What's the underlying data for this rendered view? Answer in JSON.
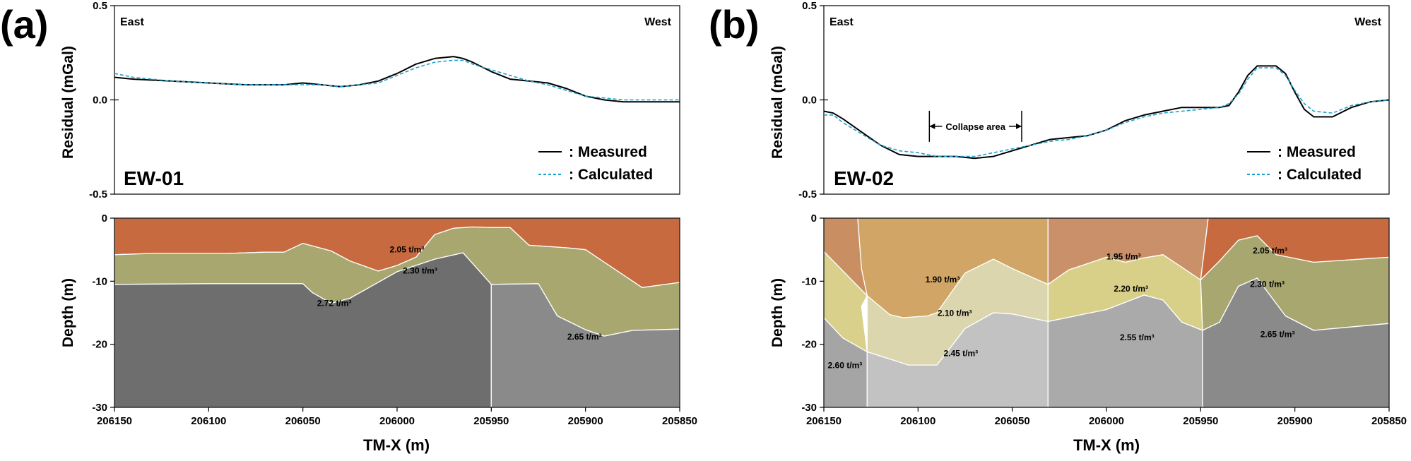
{
  "colors": {
    "measured": "#000000",
    "calculated": "#1aa3cf",
    "profile_label": "#e0302a",
    "boundary": "#ffffff"
  },
  "panels": [
    {
      "letter": "(a)",
      "left_label": "East",
      "right_label": "West",
      "profile": "EW-01",
      "annotation": "",
      "legend": {
        "measured": ": Measured",
        "calculated": ": Calculated"
      }
    },
    {
      "letter": "(b)",
      "left_label": "East",
      "right_label": "West",
      "profile": "EW-02",
      "annotation": "Collapse area",
      "legend": {
        "measured": ": Measured",
        "calculated": ": Calculated"
      }
    }
  ],
  "axes": {
    "top_ylabel": "Residual (mGal)",
    "bottom_ylabel": "Depth (m)",
    "xlabel": "TM-X (m)",
    "x_ticks": [
      206150,
      206100,
      206050,
      206000,
      205950,
      205900,
      205850
    ],
    "x_tick_labels": [
      "206150",
      "206100",
      "206050",
      "206000",
      "205950",
      "205900",
      "205850"
    ],
    "top_y_ticks": [
      0.5,
      0.0,
      -0.5
    ],
    "top_y_tick_labels": [
      "0.5",
      "0.0",
      "-0.5"
    ],
    "bottom_y_ticks": [
      0,
      -10,
      -20,
      -30
    ],
    "bottom_y_tick_labels": [
      "0",
      "-10",
      "-20",
      "-30"
    ]
  },
  "chart_data": [
    {
      "type": "line",
      "panel": "a",
      "title": "EW-01",
      "xlabel": "TM-X (m)",
      "ylabel": "Residual (mGal)",
      "xlim": [
        206150,
        205850
      ],
      "ylim": [
        -0.5,
        0.5
      ],
      "series": [
        {
          "name": "Measured",
          "x": [
            206150,
            206140,
            206120,
            206100,
            206080,
            206060,
            206050,
            206040,
            206030,
            206020,
            206010,
            206000,
            205990,
            205980,
            205970,
            205965,
            205960,
            205950,
            205940,
            205930,
            205920,
            205910,
            205900,
            205890,
            205880,
            205870,
            205860,
            205850
          ],
          "y": [
            0.12,
            0.11,
            0.1,
            0.09,
            0.08,
            0.08,
            0.09,
            0.08,
            0.07,
            0.08,
            0.1,
            0.14,
            0.19,
            0.22,
            0.23,
            0.22,
            0.2,
            0.15,
            0.11,
            0.1,
            0.09,
            0.06,
            0.02,
            0.0,
            -0.01,
            -0.01,
            -0.01,
            -0.01
          ]
        },
        {
          "name": "Calculated",
          "x": [
            206150,
            206140,
            206120,
            206100,
            206080,
            206060,
            206050,
            206040,
            206030,
            206020,
            206010,
            206000,
            205990,
            205980,
            205970,
            205965,
            205960,
            205950,
            205940,
            205930,
            205920,
            205910,
            205900,
            205890,
            205880,
            205870,
            205860,
            205850
          ],
          "y": [
            0.14,
            0.12,
            0.1,
            0.09,
            0.08,
            0.08,
            0.08,
            0.08,
            0.07,
            0.08,
            0.09,
            0.13,
            0.17,
            0.2,
            0.21,
            0.21,
            0.19,
            0.16,
            0.13,
            0.1,
            0.08,
            0.05,
            0.02,
            0.01,
            0.0,
            0.0,
            0.0,
            0.0
          ]
        }
      ]
    },
    {
      "type": "area",
      "panel": "a",
      "xlabel": "TM-X (m)",
      "ylabel": "Depth (m)",
      "xlim": [
        206150,
        205850
      ],
      "ylim": [
        -30,
        0
      ],
      "layers": [
        {
          "label": "2.05 t/m³",
          "color": "#c76a40",
          "top": {
            "x": [
              206150,
              205850
            ],
            "depth": [
              0,
              0
            ]
          },
          "bottom": {
            "x": [
              206150,
              206130,
              206110,
              206090,
              206070,
              206060,
              206050,
              206035,
              206025,
              206010,
              206000,
              205990,
              205980,
              205970,
              205960,
              205950,
              205940,
              205930,
              205910,
              205900,
              205890,
              205870,
              205850
            ],
            "depth": [
              -5.8,
              -5.6,
              -5.6,
              -5.6,
              -5.4,
              -5.4,
              -4.0,
              -5.2,
              -6.8,
              -8.4,
              -7.5,
              -6.2,
              -2.6,
              -1.6,
              -1.4,
              -1.5,
              -1.5,
              -4.3,
              -4.7,
              -5.0,
              -7.0,
              -11.0,
              -10.2
            ]
          }
        },
        {
          "label": "2.30 t/m³",
          "color": "#a8a76f",
          "top": {
            "x": [
              206150,
              206130,
              206110,
              206090,
              206070,
              206060,
              206050,
              206035,
              206025,
              206010,
              206000,
              205990,
              205980,
              205970,
              205960,
              205950,
              205940,
              205930,
              205910,
              205900,
              205890,
              205870,
              205850
            ],
            "depth": [
              -5.8,
              -5.6,
              -5.6,
              -5.6,
              -5.4,
              -5.4,
              -4.0,
              -5.2,
              -6.8,
              -8.4,
              -7.5,
              -6.2,
              -2.6,
              -1.6,
              -1.4,
              -1.5,
              -1.5,
              -4.3,
              -4.7,
              -5.0,
              -7.0,
              -11.0,
              -10.2
            ]
          },
          "bottom": {
            "x": [
              206150,
              206100,
              206050,
              206045,
              206035,
              206025,
              206000,
              205980,
              205965,
              205950,
              205925,
              205915,
              205900,
              205890,
              205875,
              205850
            ],
            "depth": [
              -10.5,
              -10.4,
              -10.4,
              -11.8,
              -13.5,
              -12.7,
              -8.5,
              -6.5,
              -5.5,
              -10.5,
              -10.4,
              -15.5,
              -17.7,
              -18.7,
              -17.8,
              -17.6
            ]
          }
        },
        {
          "label": "2.72 t/m³",
          "color": "#6e6e6e",
          "top": {
            "x": [
              206150,
              206100,
              206050,
              206045,
              206035,
              206025,
              206000,
              205980,
              205965,
              205950
            ],
            "depth": [
              -10.5,
              -10.4,
              -10.4,
              -11.8,
              -13.5,
              -12.7,
              -8.5,
              -6.5,
              -5.5,
              -10.5
            ]
          },
          "bottom": {
            "x": [
              206150,
              205950
            ],
            "depth": [
              -30,
              -30
            ]
          }
        },
        {
          "label": "2.65 t/m³",
          "color": "#8a8a8a",
          "top": {
            "x": [
              205950,
              205925,
              205915,
              205900,
              205890,
              205875,
              205850
            ],
            "depth": [
              -10.5,
              -10.4,
              -15.5,
              -17.7,
              -18.7,
              -17.8,
              -17.6
            ]
          },
          "bottom": {
            "x": [
              205950,
              205850
            ],
            "depth": [
              -30,
              -30
            ]
          }
        }
      ]
    },
    {
      "type": "line",
      "panel": "b",
      "title": "EW-02",
      "xlabel": "TM-X (m)",
      "ylabel": "Residual (mGal)",
      "xlim": [
        206150,
        205850
      ],
      "ylim": [
        -0.5,
        0.5
      ],
      "series": [
        {
          "name": "Measured",
          "x": [
            206150,
            206145,
            206140,
            206130,
            206120,
            206110,
            206100,
            206090,
            206080,
            206070,
            206060,
            206050,
            206040,
            206030,
            206020,
            206010,
            206000,
            205990,
            205980,
            205970,
            205960,
            205950,
            205940,
            205935,
            205930,
            205925,
            205920,
            205910,
            205905,
            205900,
            205895,
            205890,
            205880,
            205870,
            205860,
            205850
          ],
          "y": [
            -0.06,
            -0.07,
            -0.1,
            -0.17,
            -0.24,
            -0.29,
            -0.3,
            -0.3,
            -0.3,
            -0.31,
            -0.3,
            -0.27,
            -0.24,
            -0.21,
            -0.2,
            -0.19,
            -0.16,
            -0.11,
            -0.08,
            -0.06,
            -0.04,
            -0.04,
            -0.04,
            -0.03,
            0.04,
            0.13,
            0.18,
            0.18,
            0.14,
            0.04,
            -0.05,
            -0.09,
            -0.09,
            -0.04,
            -0.01,
            0.0
          ]
        },
        {
          "name": "Calculated",
          "x": [
            206150,
            206145,
            206140,
            206130,
            206120,
            206110,
            206100,
            206090,
            206080,
            206070,
            206060,
            206050,
            206040,
            206030,
            206020,
            206010,
            206000,
            205990,
            205980,
            205970,
            205960,
            205950,
            205940,
            205935,
            205930,
            205925,
            205920,
            205910,
            205905,
            205900,
            205895,
            205890,
            205880,
            205870,
            205860,
            205850
          ],
          "y": [
            -0.08,
            -0.08,
            -0.12,
            -0.18,
            -0.24,
            -0.27,
            -0.28,
            -0.3,
            -0.3,
            -0.3,
            -0.28,
            -0.26,
            -0.24,
            -0.22,
            -0.21,
            -0.19,
            -0.16,
            -0.12,
            -0.09,
            -0.07,
            -0.06,
            -0.05,
            -0.04,
            -0.02,
            0.03,
            0.11,
            0.17,
            0.17,
            0.13,
            0.05,
            -0.02,
            -0.06,
            -0.07,
            -0.03,
            -0.01,
            0.0
          ]
        }
      ]
    },
    {
      "type": "area",
      "panel": "b",
      "xlabel": "TM-X (m)",
      "ylabel": "Depth (m)",
      "xlim": [
        206150,
        205850
      ],
      "ylim": [
        -30,
        0
      ],
      "layers": [
        {
          "label": "",
          "color": "#c98f62",
          "polygon": {
            "x": [
              206150,
              206132,
              206130,
              206127,
              206150
            ],
            "depth": [
              0,
              0,
              -8,
              -12.3,
              -5.3
            ]
          }
        },
        {
          "label": "",
          "color": "#d9d08c",
          "polygon": {
            "x": [
              206150,
              206127,
              206130,
              206127,
              206140,
              206150
            ],
            "depth": [
              -5.3,
              -12.3,
              -14,
              -21.2,
              -19,
              -15.8
            ]
          }
        },
        {
          "label": "2.60 t/m³",
          "color": "#a5a5a5",
          "polygon": {
            "x": [
              206150,
              206140,
              206127,
              206127,
              206150
            ],
            "depth": [
              -15.8,
              -19,
              -21.2,
              -30,
              -30
            ]
          }
        },
        {
          "label": "1.90 t/m³",
          "color": "#d0a565",
          "polygon": {
            "x": [
              206132,
              206031,
              206031,
              206050,
              206060,
              206075,
              206090,
              206095,
              206108,
              206115,
              206127,
              206130
            ],
            "depth": [
              0,
              0,
              -10.5,
              -8.0,
              -6.5,
              -8.7,
              -15,
              -15.5,
              -15.8,
              -15.3,
              -12.3,
              -8
            ]
          }
        },
        {
          "label": "2.10 t/m³",
          "color": "#dcd6ae",
          "polygon": {
            "x": [
              206127,
              206115,
              206108,
              206095,
              206090,
              206075,
              206060,
              206050,
              206031,
              206031,
              206050,
              206060,
              206075,
              206090,
              206105,
              206127
            ],
            "depth": [
              -12.3,
              -15.3,
              -15.8,
              -15.5,
              -15,
              -8.7,
              -6.5,
              -8.0,
              -10.5,
              -16.4,
              -15.2,
              -15.0,
              -17.5,
              -23.3,
              -23.3,
              -21.2
            ]
          }
        },
        {
          "label": "2.45 t/m³",
          "color": "#c2c2c2",
          "polygon": {
            "x": [
              206127,
              206105,
              206090,
              206075,
              206060,
              206050,
              206031,
              206031,
              206127
            ],
            "depth": [
              -21.2,
              -23.3,
              -23.3,
              -17.5,
              -15.0,
              -15.2,
              -16.4,
              -30,
              -30
            ]
          }
        },
        {
          "label": "1.95 t/m³",
          "color": "#c9906a",
          "polygon": {
            "x": [
              206031,
              205946,
              205950,
              205970,
              205980,
              205990,
              206000,
              206020,
              206031
            ],
            "depth": [
              0,
              0,
              -9.8,
              -5.8,
              -6.3,
              -7.0,
              -6.2,
              -8.2,
              -10.5
            ]
          }
        },
        {
          "label": "2.20 t/m³",
          "color": "#d8d088",
          "polygon": {
            "x": [
              206031,
              206020,
              206000,
              205990,
              205980,
              205970,
              205950,
              205949,
              205960,
              205970,
              205980,
              206000,
              206031
            ],
            "depth": [
              -10.5,
              -8.2,
              -6.2,
              -7.0,
              -6.3,
              -5.8,
              -9.8,
              -17.8,
              -16.5,
              -13.0,
              -12.2,
              -14.5,
              -16.4
            ]
          }
        },
        {
          "label": "2.55 t/m³",
          "color": "#aaaaaa",
          "polygon": {
            "x": [
              206031,
              206000,
              205980,
              205970,
              205960,
              205949,
              205949,
              206031
            ],
            "depth": [
              -16.4,
              -14.5,
              -12.2,
              -13.0,
              -16.5,
              -17.8,
              -30,
              -30
            ]
          }
        },
        {
          "label": "2.05 t/m³",
          "color": "#c76a40",
          "polygon": {
            "x": [
              205946,
              205850,
              205850,
              205890,
              205910,
              205920,
              205930,
              205940,
              205946,
              205950
            ],
            "depth": [
              0,
              0,
              -6.2,
              -7.0,
              -5.8,
              -2.8,
              -3.5,
              -6.8,
              -8.6,
              -9.8
            ]
          }
        },
        {
          "label": "2.30 t/m³",
          "color": "#a8a76f",
          "polygon": {
            "x": [
              205950,
              205946,
              205940,
              205930,
              205920,
              205910,
              205890,
              205850,
              205850,
              205890,
              205905,
              205920,
              205930,
              205940,
              205949
            ],
            "depth": [
              -9.8,
              -8.6,
              -6.8,
              -3.5,
              -2.8,
              -5.8,
              -7.0,
              -6.2,
              -16.7,
              -17.8,
              -15.5,
              -9.5,
              -10.8,
              -16.5,
              -17.8
            ]
          }
        },
        {
          "label": "2.65 t/m³",
          "color": "#8a8a8a",
          "polygon": {
            "x": [
              205949,
              205940,
              205930,
              205920,
              205905,
              205890,
              205850,
              205850,
              205949
            ],
            "depth": [
              -17.8,
              -16.5,
              -10.8,
              -9.5,
              -15.5,
              -17.8,
              -16.7,
              -30,
              -30
            ]
          }
        }
      ],
      "annotation": {
        "label": "Collapse area",
        "x_start": 206094,
        "x_end": 206045,
        "y": -0.14
      }
    }
  ]
}
